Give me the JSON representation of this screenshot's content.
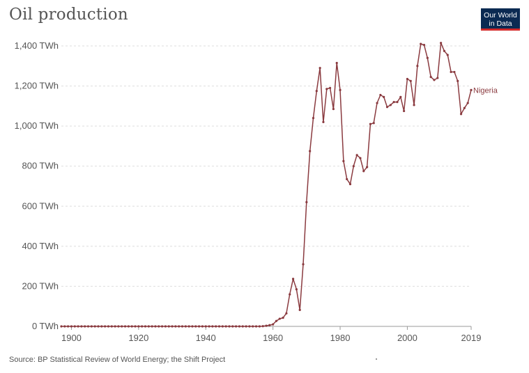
{
  "header": {
    "title": "Oil production",
    "logo_line1": "Our World",
    "logo_line2": "in Data"
  },
  "footer": {
    "source": "Source: BP Statistical Review of World Energy; the Shift Project"
  },
  "colors": {
    "series": "#8a3a3f",
    "grid": "#dddddd",
    "axis_text": "#555555"
  },
  "chart_data": {
    "type": "line",
    "title": "Oil production",
    "xlabel": "",
    "ylabel": "",
    "xlim": [
      1897,
      2019
    ],
    "ylim": [
      0,
      1400
    ],
    "x_ticks": [
      1900,
      1920,
      1940,
      1960,
      1980,
      2000,
      2019
    ],
    "y_ticks": [
      {
        "value": 0,
        "label": "0 TWh"
      },
      {
        "value": 200,
        "label": "200 TWh"
      },
      {
        "value": 400,
        "label": "400 TWh"
      },
      {
        "value": 600,
        "label": "600 TWh"
      },
      {
        "value": 800,
        "label": "800 TWh"
      },
      {
        "value": 1000,
        "label": "1,000 TWh"
      },
      {
        "value": 1200,
        "label": "1,200 TWh"
      },
      {
        "value": 1400,
        "label": "1,400 TWh"
      }
    ],
    "grid": true,
    "series": [
      {
        "name": "Nigeria",
        "x": [
          1897,
          1898,
          1899,
          1900,
          1901,
          1902,
          1903,
          1904,
          1905,
          1906,
          1907,
          1908,
          1909,
          1910,
          1911,
          1912,
          1913,
          1914,
          1915,
          1916,
          1917,
          1918,
          1919,
          1920,
          1921,
          1922,
          1923,
          1924,
          1925,
          1926,
          1927,
          1928,
          1929,
          1930,
          1931,
          1932,
          1933,
          1934,
          1935,
          1936,
          1937,
          1938,
          1939,
          1940,
          1941,
          1942,
          1943,
          1944,
          1945,
          1946,
          1947,
          1948,
          1949,
          1950,
          1951,
          1952,
          1953,
          1954,
          1955,
          1956,
          1957,
          1958,
          1959,
          1960,
          1961,
          1962,
          1963,
          1964,
          1965,
          1966,
          1967,
          1968,
          1969,
          1970,
          1971,
          1972,
          1973,
          1974,
          1975,
          1976,
          1977,
          1978,
          1979,
          1980,
          1981,
          1982,
          1983,
          1984,
          1985,
          1986,
          1987,
          1988,
          1989,
          1990,
          1991,
          1992,
          1993,
          1994,
          1995,
          1996,
          1997,
          1998,
          1999,
          2000,
          2001,
          2002,
          2003,
          2004,
          2005,
          2006,
          2007,
          2008,
          2009,
          2010,
          2011,
          2012,
          2013,
          2014,
          2015,
          2016,
          2017,
          2018,
          2019
        ],
        "y": [
          0,
          0,
          0,
          0,
          0,
          0,
          0,
          0,
          0,
          0,
          0,
          0,
          0,
          0,
          0,
          0,
          0,
          0,
          0,
          0,
          0,
          0,
          0,
          0,
          0,
          0,
          0,
          0,
          0,
          0,
          0,
          0,
          0,
          0,
          0,
          0,
          0,
          0,
          0,
          0,
          0,
          0,
          0,
          0,
          0,
          0,
          0,
          0,
          0,
          0,
          0,
          0,
          0,
          0,
          0,
          0,
          0,
          0,
          0,
          0,
          1,
          3,
          6,
          10,
          27,
          38,
          43,
          65,
          160,
          237,
          185,
          82,
          310,
          620,
          875,
          1040,
          1175,
          1290,
          1020,
          1185,
          1190,
          1085,
          1315,
          1180,
          825,
          735,
          710,
          800,
          855,
          840,
          775,
          795,
          1010,
          1015,
          1115,
          1155,
          1145,
          1095,
          1105,
          1120,
          1120,
          1145,
          1075,
          1235,
          1225,
          1105,
          1300,
          1410,
          1405,
          1340,
          1245,
          1230,
          1240,
          1415,
          1375,
          1355,
          1270,
          1270,
          1225,
          1060,
          1090,
          1115,
          1180
        ]
      }
    ]
  }
}
